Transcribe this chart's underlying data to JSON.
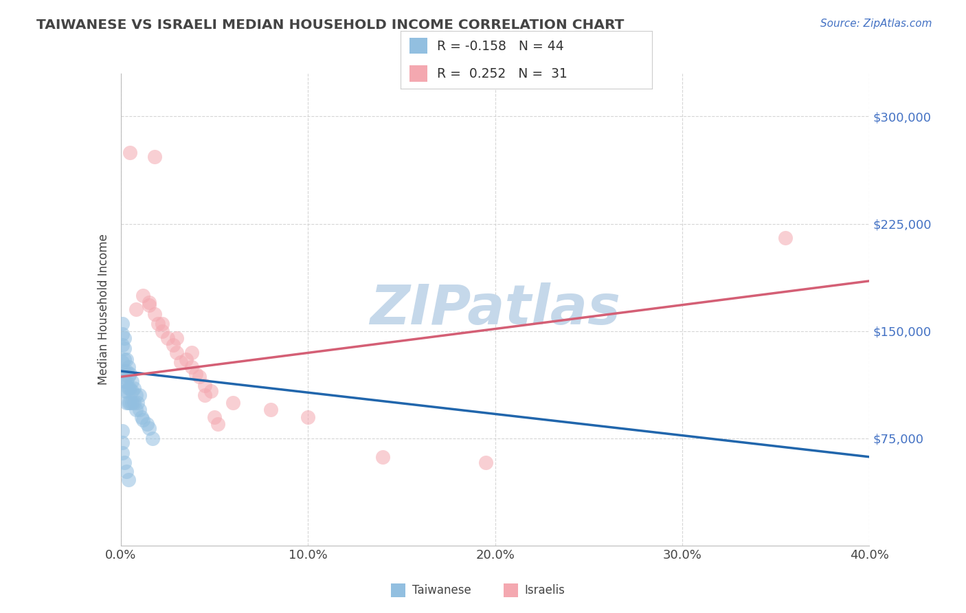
{
  "title": "TAIWANESE VS ISRAELI MEDIAN HOUSEHOLD INCOME CORRELATION CHART",
  "source_text": "Source: ZipAtlas.com",
  "ylabel": "Median Household Income",
  "xlim": [
    0.0,
    0.4
  ],
  "ylim": [
    0,
    330000
  ],
  "xtick_labels": [
    "0.0%",
    "10.0%",
    "20.0%",
    "30.0%",
    "40.0%"
  ],
  "xtick_values": [
    0.0,
    0.1,
    0.2,
    0.3,
    0.4
  ],
  "ytick_positions": [
    75000,
    150000,
    225000,
    300000
  ],
  "ytick_labels": [
    "$75,000",
    "$150,000",
    "$225,000",
    "$300,000"
  ],
  "background_color": "#ffffff",
  "grid_color": "#cccccc",
  "watermark": "ZIPatlas",
  "watermark_color": "#c5d8ea",
  "taiwanese_color": "#92bfe0",
  "israeli_color": "#f4a8b0",
  "taiwanese_line_color": "#2166ac",
  "israeli_line_color": "#d45f75",
  "title_color": "#444444",
  "source_color": "#4472c4",
  "ytick_color": "#4472c4",
  "xtick_color": "#444444",
  "ylabel_color": "#444444",
  "tw_scatter_x": [
    0.001,
    0.001,
    0.001,
    0.001,
    0.001,
    0.002,
    0.002,
    0.002,
    0.002,
    0.002,
    0.002,
    0.003,
    0.003,
    0.003,
    0.003,
    0.003,
    0.004,
    0.004,
    0.004,
    0.004,
    0.005,
    0.005,
    0.005,
    0.006,
    0.006,
    0.006,
    0.007,
    0.007,
    0.008,
    0.008,
    0.009,
    0.01,
    0.01,
    0.011,
    0.012,
    0.014,
    0.015,
    0.017,
    0.001,
    0.001,
    0.001,
    0.002,
    0.003,
    0.004
  ],
  "tw_scatter_y": [
    155000,
    148000,
    140000,
    128000,
    118000,
    145000,
    138000,
    130000,
    122000,
    115000,
    108000,
    130000,
    122000,
    115000,
    108000,
    100000,
    125000,
    118000,
    110000,
    100000,
    120000,
    110000,
    100000,
    115000,
    108000,
    100000,
    110000,
    100000,
    105000,
    95000,
    100000,
    105000,
    95000,
    90000,
    88000,
    85000,
    82000,
    75000,
    80000,
    72000,
    65000,
    58000,
    52000,
    46000
  ],
  "is_scatter_x": [
    0.005,
    0.018,
    0.008,
    0.012,
    0.015,
    0.018,
    0.02,
    0.022,
    0.025,
    0.028,
    0.03,
    0.032,
    0.035,
    0.038,
    0.04,
    0.042,
    0.045,
    0.048,
    0.05,
    0.052,
    0.015,
    0.022,
    0.03,
    0.038,
    0.1,
    0.14,
    0.195,
    0.355,
    0.045,
    0.06,
    0.08
  ],
  "is_scatter_y": [
    275000,
    272000,
    165000,
    175000,
    168000,
    162000,
    155000,
    150000,
    145000,
    140000,
    135000,
    128000,
    130000,
    125000,
    120000,
    118000,
    112000,
    108000,
    90000,
    85000,
    170000,
    155000,
    145000,
    135000,
    90000,
    62000,
    58000,
    215000,
    105000,
    100000,
    95000
  ],
  "tw_line_x0": 0.0,
  "tw_line_x1": 0.4,
  "tw_line_y0": 122000,
  "tw_line_y1": 62000,
  "is_line_x0": 0.0,
  "is_line_x1": 0.4,
  "is_line_y0": 118000,
  "is_line_y1": 185000
}
